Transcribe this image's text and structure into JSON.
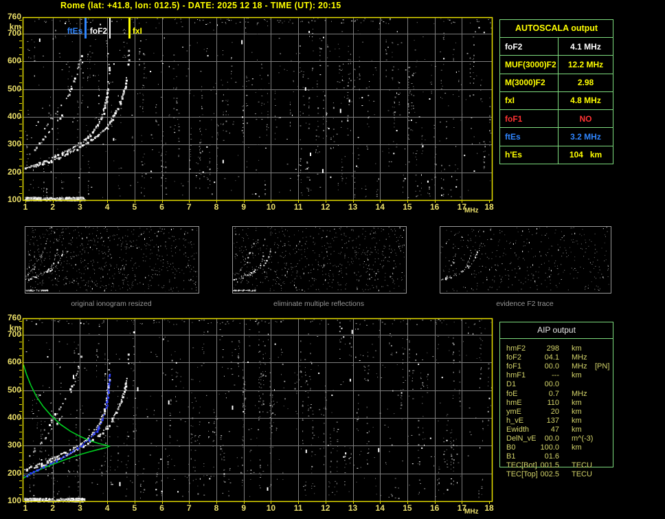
{
  "title": "Rome (lat: +41.8, lon: 012.5) - DATE: 2025 12 18 - TIME (UT): 20:15",
  "colors": {
    "background": "#000000",
    "title_yellow": "#ffff00",
    "axis_label": "#ece06a",
    "plot_border": "#e8e000",
    "grid": "#7e7e7e",
    "noise_gray": "#8a8a8a",
    "trace_white": "#ffffff",
    "table_border_green": "#7fdd7f",
    "profile_green": "#00d020",
    "restored_blue": "#2b3cff",
    "ftes_blue": "#2f86ff",
    "fof1_red": "#ff3333",
    "aip_text": "#d4d46a",
    "caption_gray": "#989898"
  },
  "axes": {
    "x_unit": "MHz",
    "y_unit": "km",
    "x_ticks": [
      1,
      2,
      3,
      4,
      5,
      6,
      7,
      8,
      9,
      10,
      11,
      12,
      13,
      14,
      15,
      16,
      17,
      18
    ],
    "y_ticks": [
      760,
      700,
      600,
      500,
      400,
      300,
      200,
      100
    ]
  },
  "autoscala": {
    "header": "AUTOSCALA output",
    "rows": [
      {
        "label": "foF2",
        "value": "4.1 MHz",
        "color": "#ffffff"
      },
      {
        "label": "MUF(3000)F2",
        "value": "12.2 MHz",
        "color": "#ffff00"
      },
      {
        "label": "M(3000)F2",
        "value": "2.98",
        "color": "#ffff00"
      },
      {
        "label": "fxI",
        "value": "4.8 MHz",
        "color": "#ffff00"
      },
      {
        "label": "foF1",
        "value": "NO",
        "color": "#ff3333"
      },
      {
        "label": "ftEs",
        "value": "3.2 MHz",
        "color": "#2f86ff"
      },
      {
        "label": "h'Es",
        "value": "104   km",
        "color": "#ffff00"
      }
    ]
  },
  "aip": {
    "header": "AIP output",
    "rows": [
      {
        "name": "hmF2",
        "value": "298",
        "unit": "km",
        "extra": ""
      },
      {
        "name": "foF2",
        "value": "04.1",
        "unit": "MHz",
        "extra": ""
      },
      {
        "name": "foF1",
        "value": "00.0",
        "unit": "MHz",
        "extra": "[PN]"
      },
      {
        "name": "hmF1",
        "value": "---",
        "unit": "km",
        "extra": ""
      },
      {
        "name": "D1",
        "value": "00.0",
        "unit": "",
        "extra": ""
      },
      {
        "name": "foE",
        "value": "0.7",
        "unit": "MHz",
        "extra": ""
      },
      {
        "name": "hmE",
        "value": "110",
        "unit": "km",
        "extra": ""
      },
      {
        "name": "ymE",
        "value": "20",
        "unit": "km",
        "extra": ""
      },
      {
        "name": "h_vE",
        "value": "137",
        "unit": "km",
        "extra": ""
      },
      {
        "name": "Ewidth",
        "value": "47",
        "unit": "km",
        "extra": ""
      },
      {
        "name": "DelN_vE",
        "value": "00.0",
        "unit": "m^(-3)",
        "extra": ""
      },
      {
        "name": "B0",
        "value": "100.0",
        "unit": "km",
        "extra": ""
      },
      {
        "name": "B1",
        "value": "01.6",
        "unit": "",
        "extra": ""
      },
      {
        "name": "TEC[Bot]",
        "value": "001.5",
        "unit": "TECU",
        "extra": ""
      },
      {
        "name": "TEC[Top]",
        "value": "002.5",
        "unit": "TECU",
        "extra": ""
      }
    ]
  },
  "thumbnails": [
    {
      "caption": "original ionogram resized",
      "multiples_intensity": 1.0,
      "es_intensity": 1.0,
      "noise_level": 1.0
    },
    {
      "caption": "eliminate multiple reflections",
      "multiples_intensity": 0.6,
      "es_intensity": 1.0,
      "noise_level": 0.9
    },
    {
      "caption": "evidence F2 trace",
      "multiples_intensity": 0.35,
      "es_intensity": 0.0,
      "noise_level": 0.55
    }
  ],
  "chart_data": [
    {
      "id": "ionogram_autoscaled",
      "type": "scatter",
      "title": "",
      "xlabel": "MHz",
      "ylabel": "km",
      "xlim": [
        1,
        18
      ],
      "ylim": [
        100,
        760
      ],
      "x_ticks": [
        1,
        2,
        3,
        4,
        5,
        6,
        7,
        8,
        9,
        10,
        11,
        12,
        13,
        14,
        15,
        16,
        17,
        18
      ],
      "y_ticks": [
        760,
        700,
        600,
        500,
        400,
        300,
        200,
        100
      ],
      "grid": true,
      "markers": [
        {
          "label": "ftEs",
          "freq_mhz": 3.2,
          "color": "#2f86ff",
          "side": "left"
        },
        {
          "label": "foF2",
          "freq_mhz": 4.1,
          "color": "#ffffff",
          "side": "left"
        },
        {
          "label": "fxI",
          "freq_mhz": 4.8,
          "color": "#ffff00",
          "side": "right"
        }
      ],
      "traces": {
        "o_trace": [
          [
            0.95,
            215
          ],
          [
            1.2,
            225
          ],
          [
            1.5,
            237
          ],
          [
            1.8,
            249
          ],
          [
            2.1,
            262
          ],
          [
            2.4,
            276
          ],
          [
            2.7,
            291
          ],
          [
            3.0,
            308
          ],
          [
            3.25,
            327
          ],
          [
            3.45,
            348
          ],
          [
            3.62,
            372
          ],
          [
            3.77,
            400
          ],
          [
            3.88,
            432
          ],
          [
            3.95,
            466
          ],
          [
            4.0,
            500
          ],
          [
            4.03,
            528
          ]
        ],
        "o_spread": [
          [
            4.03,
            540
          ],
          [
            4.045,
            558
          ],
          [
            4.05,
            578
          ],
          [
            4.06,
            600
          ]
        ],
        "x_trace": [
          [
            1.3,
            221
          ],
          [
            1.6,
            231
          ],
          [
            1.9,
            243
          ],
          [
            2.2,
            255
          ],
          [
            2.5,
            269
          ],
          [
            2.8,
            284
          ],
          [
            3.1,
            300
          ],
          [
            3.4,
            319
          ],
          [
            3.7,
            341
          ],
          [
            3.95,
            366
          ],
          [
            4.15,
            394
          ],
          [
            4.32,
            424
          ],
          [
            4.46,
            456
          ],
          [
            4.57,
            490
          ],
          [
            4.65,
            520
          ],
          [
            4.7,
            545
          ]
        ],
        "x_spread": [
          [
            4.71,
            558
          ],
          [
            4.72,
            578
          ],
          [
            4.74,
            600
          ],
          [
            4.76,
            625
          ],
          [
            4.77,
            648
          ]
        ],
        "second_hop_long": [
          [
            1.7,
            362
          ],
          [
            1.95,
            395
          ],
          [
            2.2,
            430
          ],
          [
            2.45,
            468
          ],
          [
            2.65,
            505
          ],
          [
            2.82,
            548
          ],
          [
            2.95,
            595
          ],
          [
            3.05,
            642
          ]
        ],
        "second_hop_short": [
          [
            1.1,
            262
          ],
          [
            1.35,
            290
          ],
          [
            1.6,
            318
          ],
          [
            1.85,
            348
          ],
          [
            2.1,
            380
          ],
          [
            2.3,
            408
          ]
        ],
        "es_layer": {
          "f_min": 0.95,
          "f_max": 3.15,
          "h_min": 100,
          "h_max": 112
        }
      }
    },
    {
      "id": "ionogram_profile_inversion",
      "type": "scatter",
      "title": "",
      "xlabel": "MHz",
      "ylabel": "km",
      "xlim": [
        1,
        18
      ],
      "ylim": [
        100,
        760
      ],
      "x_ticks": [
        1,
        2,
        3,
        4,
        5,
        6,
        7,
        8,
        9,
        10,
        11,
        12,
        13,
        14,
        15,
        16,
        17,
        18
      ],
      "y_ticks": [
        760,
        700,
        600,
        500,
        400,
        300,
        200,
        100
      ],
      "grid": true,
      "markers": [],
      "traces": {
        "o_trace": [
          [
            0.95,
            215
          ],
          [
            1.2,
            225
          ],
          [
            1.5,
            237
          ],
          [
            1.8,
            249
          ],
          [
            2.1,
            262
          ],
          [
            2.4,
            276
          ],
          [
            2.7,
            291
          ],
          [
            3.0,
            308
          ],
          [
            3.25,
            327
          ],
          [
            3.45,
            348
          ],
          [
            3.62,
            372
          ],
          [
            3.77,
            400
          ],
          [
            3.88,
            432
          ],
          [
            3.95,
            466
          ],
          [
            4.0,
            500
          ],
          [
            4.03,
            528
          ]
        ],
        "o_spread": [
          [
            4.03,
            540
          ],
          [
            4.045,
            558
          ],
          [
            4.05,
            578
          ],
          [
            4.06,
            600
          ]
        ],
        "x_trace": [
          [
            1.3,
            221
          ],
          [
            1.6,
            231
          ],
          [
            1.9,
            243
          ],
          [
            2.2,
            255
          ],
          [
            2.5,
            269
          ],
          [
            2.8,
            284
          ],
          [
            3.1,
            300
          ],
          [
            3.4,
            319
          ],
          [
            3.7,
            341
          ],
          [
            3.95,
            366
          ],
          [
            4.15,
            394
          ],
          [
            4.32,
            424
          ],
          [
            4.46,
            456
          ],
          [
            4.57,
            490
          ],
          [
            4.65,
            520
          ],
          [
            4.7,
            545
          ]
        ],
        "x_spread": [
          [
            4.71,
            558
          ],
          [
            4.72,
            578
          ],
          [
            4.74,
            600
          ],
          [
            4.76,
            625
          ],
          [
            4.77,
            648
          ]
        ],
        "second_hop_long": [
          [
            1.7,
            362
          ],
          [
            1.95,
            395
          ],
          [
            2.2,
            430
          ],
          [
            2.45,
            468
          ],
          [
            2.65,
            505
          ],
          [
            2.82,
            548
          ],
          [
            2.95,
            595
          ],
          [
            3.05,
            642
          ]
        ],
        "second_hop_short": [
          [
            1.1,
            262
          ],
          [
            1.35,
            290
          ],
          [
            1.6,
            318
          ],
          [
            1.85,
            348
          ],
          [
            2.1,
            380
          ],
          [
            2.3,
            408
          ]
        ],
        "es_layer": {
          "f_min": 0.95,
          "f_max": 3.15,
          "h_min": 100,
          "h_max": 112
        }
      },
      "profile_green": [
        [
          0.93,
          592
        ],
        [
          1.05,
          555
        ],
        [
          1.2,
          518
        ],
        [
          1.4,
          478
        ],
        [
          1.65,
          442
        ],
        [
          1.95,
          408
        ],
        [
          2.3,
          376
        ],
        [
          2.65,
          352
        ],
        [
          3.0,
          334
        ],
        [
          3.35,
          319
        ],
        [
          3.7,
          308
        ],
        [
          3.95,
          302
        ],
        [
          4.07,
          298
        ],
        [
          3.95,
          293
        ],
        [
          3.7,
          287
        ],
        [
          3.35,
          278
        ],
        [
          3.0,
          268
        ],
        [
          2.65,
          257
        ],
        [
          2.3,
          244
        ],
        [
          1.95,
          231
        ],
        [
          1.65,
          219
        ],
        [
          1.4,
          208
        ],
        [
          1.2,
          199
        ],
        [
          1.05,
          191
        ],
        [
          0.93,
          183
        ]
      ],
      "restored_blue": [
        [
          0.95,
          193
        ],
        [
          1.15,
          202
        ],
        [
          1.4,
          213
        ],
        [
          1.65,
          224
        ],
        [
          1.9,
          236
        ],
        [
          2.15,
          249
        ],
        [
          2.4,
          262
        ],
        [
          2.65,
          277
        ],
        [
          2.9,
          293
        ],
        [
          3.1,
          307
        ],
        [
          3.3,
          324
        ],
        [
          3.5,
          344
        ],
        [
          3.67,
          368
        ],
        [
          3.8,
          396
        ],
        [
          3.9,
          428
        ],
        [
          3.97,
          462
        ],
        [
          4.02,
          496
        ],
        [
          4.05,
          524
        ],
        [
          4.06,
          545
        ],
        [
          4.07,
          560
        ]
      ]
    }
  ]
}
